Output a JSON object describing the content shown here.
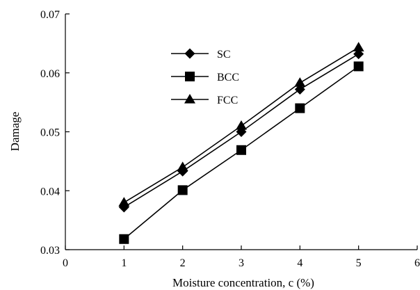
{
  "chart_data": {
    "type": "line",
    "xlabel": "Moisture concentration, c (%)",
    "ylabel": "Damage",
    "xlim": [
      0,
      6
    ],
    "ylim": [
      0.03,
      0.07
    ],
    "xticks": [
      "0",
      "1",
      "2",
      "3",
      "4",
      "5",
      "6"
    ],
    "yticks": [
      "0.03",
      "0.04",
      "0.05",
      "0.06",
      "0.07"
    ],
    "grid": false,
    "legend_position": "upper-middle",
    "x": [
      1,
      2,
      3,
      4,
      5
    ],
    "series": [
      {
        "name": "SC",
        "marker": "diamond",
        "values": [
          0.0372,
          0.0433,
          0.05,
          0.0572,
          0.0632
        ]
      },
      {
        "name": "BCC",
        "marker": "square",
        "values": [
          0.0318,
          0.0401,
          0.0469,
          0.054,
          0.0611
        ]
      },
      {
        "name": "FCC",
        "marker": "triangle",
        "values": [
          0.038,
          0.044,
          0.051,
          0.0583,
          0.0643
        ]
      }
    ],
    "color": "#000000"
  }
}
